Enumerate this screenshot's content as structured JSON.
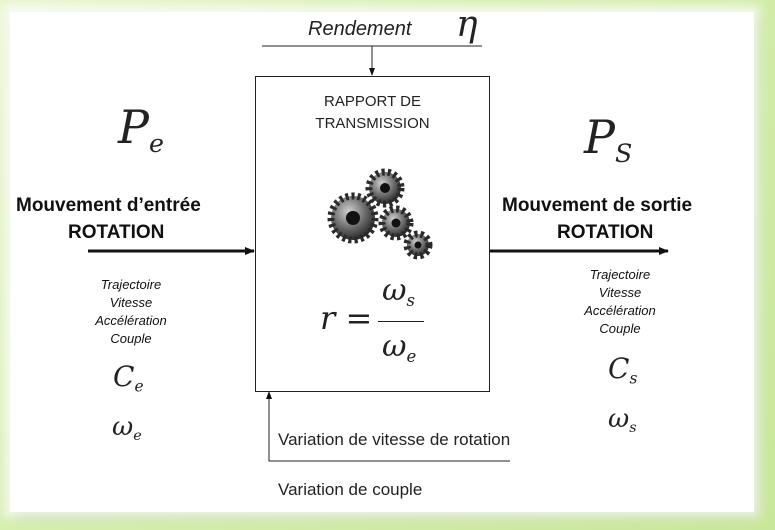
{
  "efficiency": {
    "label": "Rendement",
    "symbol": "η"
  },
  "box": {
    "title_line1": "RAPPORT DE",
    "title_line2": "TRANSMISSION",
    "formula": {
      "lhs": "r =",
      "num_base": "ω",
      "num_sub": "s",
      "den_base": "ω",
      "den_sub": "e"
    }
  },
  "input": {
    "power_base": "P",
    "power_sub": "e",
    "motion_line1": "Mouvement d’entrée",
    "motion_line2": "ROTATION",
    "properties": [
      "Trajectoire",
      "Vitesse",
      "Accélération",
      "Couple"
    ],
    "torque_base": "C",
    "torque_sub": "e",
    "speed_base": "ω",
    "speed_sub": "e"
  },
  "output": {
    "power_base": "P",
    "power_sub": "S",
    "motion_line1": "Mouvement de sortie",
    "motion_line2": "ROTATION",
    "properties": [
      "Trajectoire",
      "Vitesse",
      "Accélération",
      "Couple"
    ],
    "torque_base": "C",
    "torque_sub": "s",
    "speed_base": "ω",
    "speed_sub": "s"
  },
  "variations": {
    "speed": "Variation de vitesse de rotation",
    "torque": "Variation de couple"
  },
  "icons": {
    "gears": "gears-icon"
  }
}
